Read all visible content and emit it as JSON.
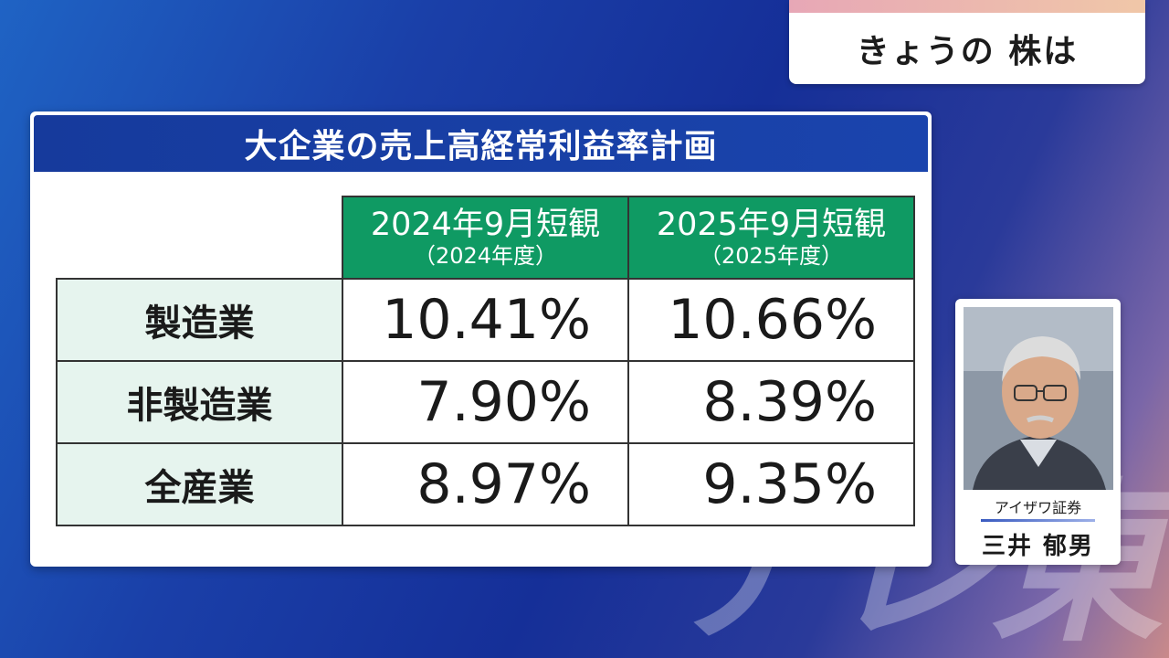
{
  "watermark": "テレ東",
  "corner_title": "きょうの 株は",
  "panel": {
    "title": "大企業の売上高経常利益率計画"
  },
  "table": {
    "columns": [
      {
        "main": "2024年9月短観",
        "sub": "（2024年度）"
      },
      {
        "main": "2025年9月短観",
        "sub": "（2025年度）"
      }
    ],
    "rows": [
      {
        "label": "製造業",
        "values": [
          "10.41%",
          "10.66%"
        ]
      },
      {
        "label": "非製造業",
        "values": [
          "7.90%",
          "8.39%"
        ]
      },
      {
        "label": "全産業",
        "values": [
          "8.97%",
          "9.35%"
        ]
      }
    ]
  },
  "profile": {
    "company": "アイザワ証券",
    "name": "三井 郁男"
  },
  "colors": {
    "header_blue": "#163a9c",
    "column_green": "#0f9a63",
    "row_label_bg": "#e6f4ee"
  }
}
